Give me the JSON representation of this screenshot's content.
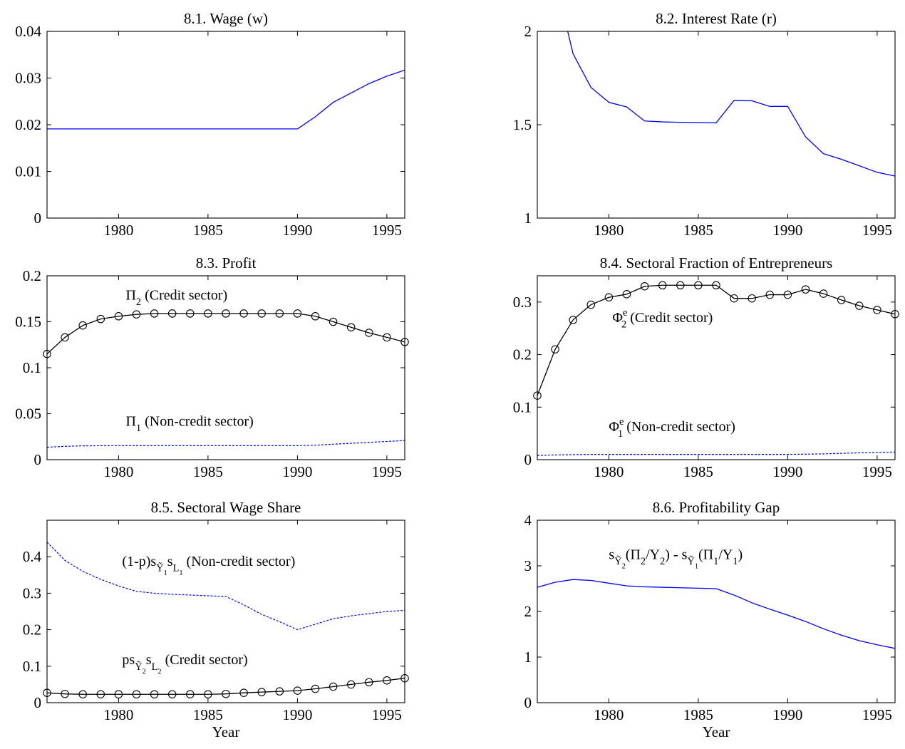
{
  "chart_data": [
    {
      "id": "p1",
      "type": "line",
      "title": "8.1. Wage (w)",
      "xlabel": "",
      "xlim": [
        1976,
        1996
      ],
      "ylim": [
        0,
        0.04
      ],
      "x_ticks": [
        1980,
        1985,
        1990,
        1995
      ],
      "y_ticks": [
        0,
        0.01,
        0.02,
        0.03,
        0.04
      ],
      "y_tick_labels": [
        "0",
        "0.01",
        "0.02",
        "0.03",
        "0.04"
      ],
      "series": [
        {
          "color": "#0000ff",
          "style": "solid",
          "marker": "none",
          "x": [
            1976,
            1977,
            1978,
            1979,
            1980,
            1981,
            1982,
            1983,
            1984,
            1985,
            1986,
            1987,
            1988,
            1989,
            1990,
            1991,
            1992,
            1993,
            1994,
            1995,
            1996
          ],
          "y": [
            0.0191,
            0.0191,
            0.0191,
            0.0191,
            0.0191,
            0.0191,
            0.0191,
            0.0191,
            0.0191,
            0.0191,
            0.0191,
            0.0191,
            0.0191,
            0.0191,
            0.0191,
            0.0217,
            0.0248,
            0.0268,
            0.0288,
            0.0304,
            0.0317
          ]
        }
      ],
      "annotations": []
    },
    {
      "id": "p2",
      "type": "line",
      "title": "8.2. Interest Rate (r)",
      "xlabel": "",
      "xlim": [
        1976,
        1996
      ],
      "ylim": [
        1,
        2
      ],
      "x_ticks": [
        1980,
        1985,
        1990,
        1995
      ],
      "y_ticks": [
        1,
        1.5,
        2
      ],
      "y_tick_labels": [
        "1",
        "1.5",
        "2"
      ],
      "series": [
        {
          "color": "#0000ff",
          "style": "solid",
          "marker": "none",
          "x": [
            1977.7,
            1978,
            1979,
            1980,
            1981,
            1982,
            1983,
            1984,
            1985,
            1986,
            1987,
            1988,
            1989,
            1990,
            1991,
            1992,
            1993,
            1994,
            1995,
            1996
          ],
          "y": [
            2.0,
            1.88,
            1.7,
            1.62,
            1.595,
            1.52,
            1.515,
            1.513,
            1.512,
            1.51,
            1.63,
            1.628,
            1.598,
            1.598,
            1.435,
            1.345,
            1.315,
            1.28,
            1.245,
            1.225
          ]
        }
      ],
      "annotations": []
    },
    {
      "id": "p3",
      "type": "line",
      "title": "8.3. Profit",
      "xlabel": "",
      "xlim": [
        1976,
        1996
      ],
      "ylim": [
        0,
        0.2
      ],
      "x_ticks": [
        1980,
        1985,
        1990,
        1995
      ],
      "y_ticks": [
        0,
        0.05,
        0.1,
        0.15,
        0.2
      ],
      "y_tick_labels": [
        "0",
        "0.05",
        "0.1",
        "0.15",
        "0.2"
      ],
      "series": [
        {
          "color": "#000000",
          "style": "solid",
          "marker": "circle",
          "x": [
            1976,
            1977,
            1978,
            1979,
            1980,
            1981,
            1982,
            1983,
            1984,
            1985,
            1986,
            1987,
            1988,
            1989,
            1990,
            1991,
            1992,
            1993,
            1994,
            1995,
            1996
          ],
          "y": [
            0.115,
            0.133,
            0.146,
            0.153,
            0.156,
            0.158,
            0.159,
            0.159,
            0.159,
            0.159,
            0.159,
            0.159,
            0.159,
            0.159,
            0.159,
            0.156,
            0.15,
            0.144,
            0.138,
            0.133,
            0.128
          ]
        },
        {
          "color": "#0000ff",
          "style": "dashed",
          "marker": "none",
          "x": [
            1976,
            1977,
            1978,
            1979,
            1980,
            1981,
            1982,
            1983,
            1984,
            1985,
            1986,
            1987,
            1988,
            1989,
            1990,
            1991,
            1992,
            1993,
            1994,
            1995,
            1996
          ],
          "y": [
            0.0135,
            0.0145,
            0.015,
            0.0152,
            0.0153,
            0.0153,
            0.0153,
            0.0153,
            0.0153,
            0.0153,
            0.0153,
            0.0153,
            0.0153,
            0.0153,
            0.0153,
            0.0158,
            0.0168,
            0.0178,
            0.0188,
            0.0198,
            0.0208
          ]
        }
      ],
      "annotations": [
        {
          "main": "Π",
          "sub": "2",
          "sup": "",
          "rest": " (Credit sector)",
          "at": [
            1980.4,
            0.174
          ]
        },
        {
          "main": "Π",
          "sub": "1",
          "sup": "",
          "rest": " (Non-credit sector)",
          "at": [
            1980.4,
            0.037
          ]
        }
      ]
    },
    {
      "id": "p4",
      "type": "line",
      "title": "8.4. Sectoral Fraction of Entrepreneurs",
      "xlabel": "",
      "xlim": [
        1976,
        1996
      ],
      "ylim": [
        0,
        0.35
      ],
      "x_ticks": [
        1980,
        1985,
        1990,
        1995
      ],
      "y_ticks": [
        0,
        0.1,
        0.2,
        0.3
      ],
      "y_tick_labels": [
        "0",
        "0.1",
        "0.2",
        "0.3"
      ],
      "series": [
        {
          "color": "#000000",
          "style": "solid",
          "marker": "circle",
          "x": [
            1976,
            1977,
            1978,
            1979,
            1980,
            1981,
            1982,
            1983,
            1984,
            1985,
            1986,
            1987,
            1988,
            1989,
            1990,
            1991,
            1992,
            1993,
            1994,
            1995,
            1996
          ],
          "y": [
            0.122,
            0.21,
            0.266,
            0.295,
            0.309,
            0.315,
            0.33,
            0.332,
            0.332,
            0.332,
            0.332,
            0.307,
            0.307,
            0.314,
            0.314,
            0.324,
            0.316,
            0.304,
            0.293,
            0.285,
            0.277
          ]
        },
        {
          "color": "#0000ff",
          "style": "dashed",
          "marker": "none",
          "x": [
            1976,
            1977,
            1978,
            1979,
            1980,
            1981,
            1982,
            1983,
            1984,
            1985,
            1986,
            1987,
            1988,
            1989,
            1990,
            1991,
            1992,
            1993,
            1994,
            1995,
            1996
          ],
          "y": [
            0.008,
            0.009,
            0.0095,
            0.01,
            0.01,
            0.01,
            0.01,
            0.01,
            0.01,
            0.01,
            0.01,
            0.01,
            0.01,
            0.01,
            0.01,
            0.0105,
            0.011,
            0.012,
            0.013,
            0.014,
            0.0145
          ]
        }
      ],
      "annotations": [
        {
          "main": "Φ",
          "sub": "2",
          "sup": "e",
          "rest": " (Credit sector)",
          "at": [
            1980.2,
            0.262
          ]
        },
        {
          "main": "Φ",
          "sub": "1",
          "sup": "e",
          "rest": " (Non-credit sector)",
          "at": [
            1980.0,
            0.054
          ]
        }
      ]
    },
    {
      "id": "p5",
      "type": "line",
      "title": "8.5. Sectoral Wage Share",
      "xlabel": "Year",
      "xlim": [
        1976,
        1996
      ],
      "ylim": [
        0,
        0.5
      ],
      "x_ticks": [
        1980,
        1985,
        1990,
        1995
      ],
      "y_ticks": [
        0,
        0.1,
        0.2,
        0.3,
        0.4
      ],
      "y_tick_labels": [
        "0",
        "0.1",
        "0.2",
        "0.3",
        "0.4"
      ],
      "series": [
        {
          "color": "#0000ff",
          "style": "dashed",
          "marker": "none",
          "x": [
            1976,
            1977,
            1978,
            1979,
            1980,
            1981,
            1982,
            1983,
            1984,
            1985,
            1986,
            1987,
            1988,
            1989,
            1990,
            1991,
            1992,
            1993,
            1994,
            1995,
            1996
          ],
          "y": [
            0.44,
            0.39,
            0.36,
            0.338,
            0.32,
            0.305,
            0.3,
            0.297,
            0.295,
            0.293,
            0.291,
            0.268,
            0.242,
            0.222,
            0.2,
            0.215,
            0.23,
            0.238,
            0.244,
            0.25,
            0.253
          ]
        },
        {
          "color": "#000000",
          "style": "solid",
          "marker": "circle",
          "x": [
            1976,
            1977,
            1978,
            1979,
            1980,
            1981,
            1982,
            1983,
            1984,
            1985,
            1986,
            1987,
            1988,
            1989,
            1990,
            1991,
            1992,
            1993,
            1994,
            1995,
            1996
          ],
          "y": [
            0.027,
            0.024,
            0.023,
            0.023,
            0.023,
            0.023,
            0.023,
            0.023,
            0.023,
            0.023,
            0.024,
            0.027,
            0.029,
            0.031,
            0.033,
            0.038,
            0.044,
            0.05,
            0.056,
            0.061,
            0.067
          ]
        }
      ],
      "annotations": [
        {
          "raw": "(1-p)s<sub>Ỹ<sub>1</sub></sub>s<sub>L<sub>1</sub></sub> (Non-credit sector)",
          "at": [
            1980.2,
            0.375
          ]
        },
        {
          "raw": "ps<sub>Ỹ<sub>2</sub></sub>s<sub>L<sub>2</sub></sub> (Credit sector)",
          "at": [
            1980.2,
            0.105
          ]
        }
      ]
    },
    {
      "id": "p6",
      "type": "line",
      "title": "8.6. Profitability Gap",
      "xlabel": "Year",
      "xlim": [
        1976,
        1996
      ],
      "ylim": [
        0,
        4
      ],
      "x_ticks": [
        1980,
        1985,
        1990,
        1995
      ],
      "y_ticks": [
        0,
        1,
        2,
        3,
        4
      ],
      "y_tick_labels": [
        "0",
        "1",
        "2",
        "3",
        "4"
      ],
      "series": [
        {
          "color": "#0000ff",
          "style": "solid",
          "marker": "none",
          "x": [
            1976,
            1977,
            1978,
            1979,
            1980,
            1981,
            1982,
            1983,
            1984,
            1985,
            1986,
            1987,
            1988,
            1989,
            1990,
            1991,
            1992,
            1993,
            1994,
            1995,
            1996
          ],
          "y": [
            2.53,
            2.64,
            2.7,
            2.68,
            2.62,
            2.56,
            2.54,
            2.53,
            2.52,
            2.51,
            2.5,
            2.36,
            2.19,
            2.05,
            1.92,
            1.78,
            1.62,
            1.48,
            1.36,
            1.27,
            1.19
          ]
        }
      ],
      "annotations": [
        {
          "raw": "s<sub>Ỹ<sub>2</sub></sub>(Π<sub>2</sub>/Y<sub>2</sub>) - s<sub>Ỹ<sub>1</sub></sub>(Π<sub>1</sub>/Y<sub>1</sub>)",
          "at": [
            1980.0,
            3.15
          ]
        }
      ]
    }
  ]
}
